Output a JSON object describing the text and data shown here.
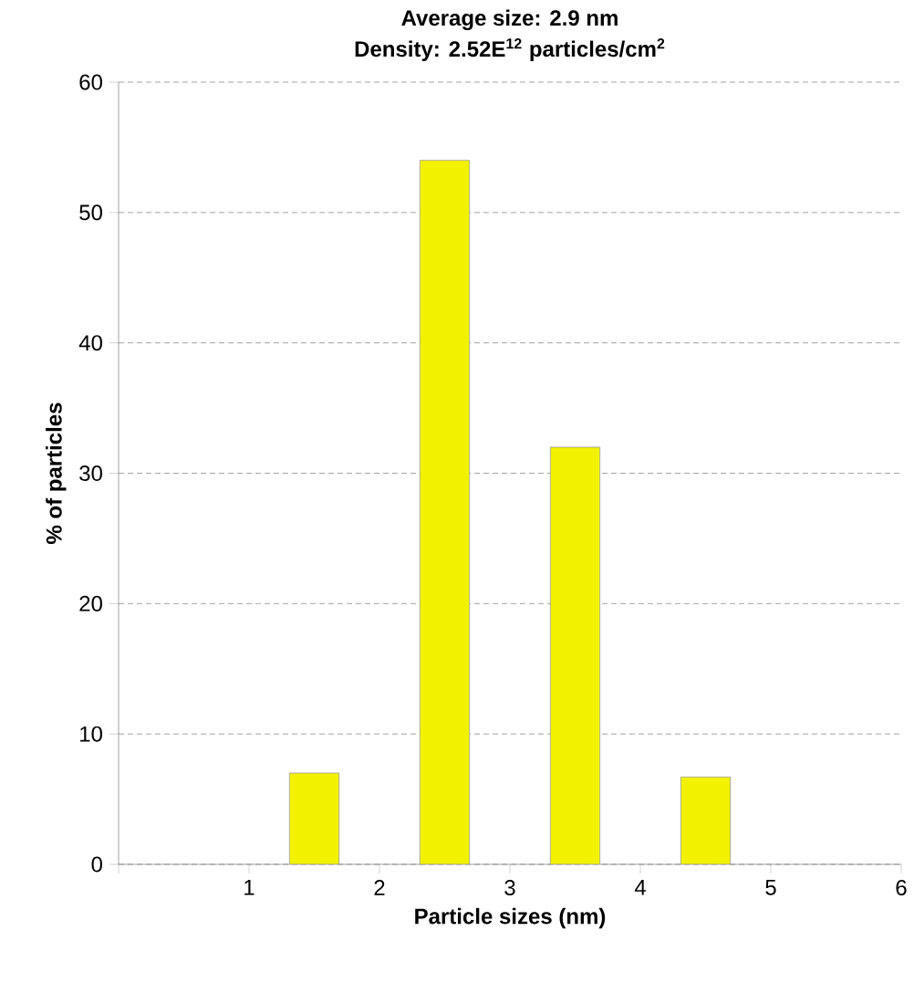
{
  "chart_data": {
    "type": "bar",
    "title": "Average size:  2.9 nm",
    "subtitle": "Density: 2.52E$^{12}$ particles/cm$^{2}$",
    "xlabel": "Particle sizes (nm)",
    "ylabel": "% of particles",
    "x": [
      1.5,
      2.5,
      3.5,
      4.5
    ],
    "values": [
      7,
      54,
      32,
      6.7
    ],
    "color": "#f2f200",
    "xlim": [
      0,
      6
    ],
    "xticks": [
      {
        "value": 0,
        "label": null
      },
      1,
      2,
      3,
      4,
      5,
      6
    ],
    "ylim": [
      0,
      60
    ],
    "yticks": [
      0,
      10,
      20,
      30,
      40,
      50,
      60
    ],
    "grid": "y"
  }
}
